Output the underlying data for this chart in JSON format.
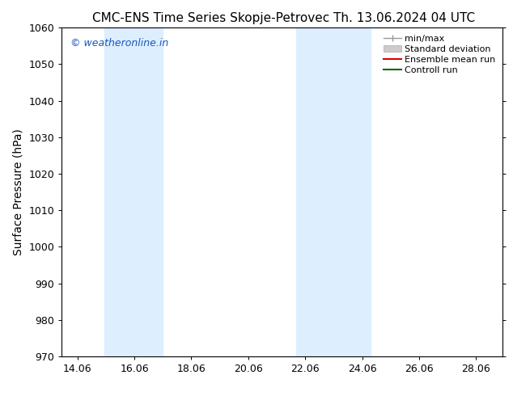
{
  "title_left": "CMC-ENS Time Series Skopje-Petrovec",
  "title_right": "Th. 13.06.2024 04 UTC",
  "ylabel": "Surface Pressure (hPa)",
  "ylim": [
    970,
    1060
  ],
  "yticks": [
    970,
    980,
    990,
    1000,
    1010,
    1020,
    1030,
    1040,
    1050,
    1060
  ],
  "xlim": [
    13.5,
    29.0
  ],
  "xtick_positions": [
    14.06,
    16.06,
    18.06,
    20.06,
    22.06,
    24.06,
    26.06,
    28.06
  ],
  "xticklabels": [
    "14.06",
    "16.06",
    "18.06",
    "20.06",
    "22.06",
    "24.06",
    "26.06",
    "28.06"
  ],
  "shaded_bands": [
    {
      "x_start": 15.0,
      "x_end": 17.06
    },
    {
      "x_start": 21.75,
      "x_end": 24.35
    }
  ],
  "shaded_color": "#ddeeff",
  "background_color": "#ffffff",
  "watermark_text": "© weatheronline.in",
  "watermark_color": "#1a56bb",
  "legend_items": [
    {
      "label": "min/max",
      "color": "#999999",
      "style": "minmax"
    },
    {
      "label": "Standard deviation",
      "color": "#cccccc",
      "style": "stddev"
    },
    {
      "label": "Ensemble mean run",
      "color": "#dd0000",
      "style": "line"
    },
    {
      "label": "Controll run",
      "color": "#006600",
      "style": "line"
    }
  ],
  "title_fontsize": 11,
  "ylabel_fontsize": 10,
  "tick_fontsize": 9,
  "legend_fontsize": 8,
  "watermark_fontsize": 9
}
